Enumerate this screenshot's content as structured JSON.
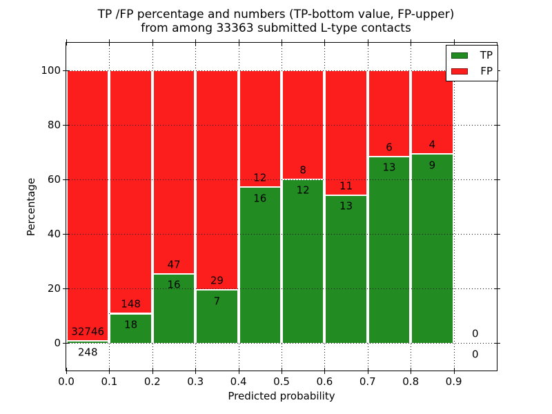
{
  "chart_data": {
    "type": "bar",
    "stacked": true,
    "title": "TP /FP percentage and numbers (TP-bottom value, FP-upper) from among 33363 submitted L-type contacts",
    "title_line1": "TP /FP percentage and numbers (TP-bottom value, FP-upper)",
    "title_line2": "from among 33363 submitted L-type contacts",
    "xlabel": "Predicted probability",
    "ylabel": "Percentage",
    "xlim": [
      0.0,
      1.0
    ],
    "ylim": [
      -10,
      110
    ],
    "grid": true,
    "x_ticks": [
      "0.0",
      "0.1",
      "0.2",
      "0.3",
      "0.4",
      "0.5",
      "0.6",
      "0.7",
      "0.8",
      "0.9"
    ],
    "y_ticks": [
      "0",
      "20",
      "40",
      "60",
      "80",
      "100"
    ],
    "legend": {
      "position": "upper right",
      "entries": [
        {
          "label": "TP",
          "color": "#228b22"
        },
        {
          "label": "FP",
          "color": "#fc1d1d"
        }
      ]
    },
    "bin_width": 0.1,
    "bins": [
      {
        "range": [
          0.0,
          0.1
        ],
        "tp": 248,
        "fp": 32746,
        "tp_percent": 0.75,
        "fp_percent": 99.25
      },
      {
        "range": [
          0.1,
          0.2
        ],
        "tp": 18,
        "fp": 148,
        "tp_percent": 10.84,
        "fp_percent": 89.16
      },
      {
        "range": [
          0.2,
          0.3
        ],
        "tp": 16,
        "fp": 47,
        "tp_percent": 25.4,
        "fp_percent": 74.6
      },
      {
        "range": [
          0.3,
          0.4
        ],
        "tp": 7,
        "fp": 29,
        "tp_percent": 19.44,
        "fp_percent": 80.56
      },
      {
        "range": [
          0.4,
          0.5
        ],
        "tp": 16,
        "fp": 12,
        "tp_percent": 57.14,
        "fp_percent": 42.86
      },
      {
        "range": [
          0.5,
          0.6
        ],
        "tp": 12,
        "fp": 8,
        "tp_percent": 60.0,
        "fp_percent": 40.0
      },
      {
        "range": [
          0.6,
          0.7
        ],
        "tp": 13,
        "fp": 11,
        "tp_percent": 54.17,
        "fp_percent": 45.83
      },
      {
        "range": [
          0.7,
          0.8
        ],
        "tp": 13,
        "fp": 6,
        "tp_percent": 68.42,
        "fp_percent": 31.58
      },
      {
        "range": [
          0.8,
          0.9
        ],
        "tp": 9,
        "fp": 4,
        "tp_percent": 69.23,
        "fp_percent": 30.77
      },
      {
        "range": [
          0.9,
          1.0
        ],
        "tp": 0,
        "fp": 0,
        "tp_percent": 0,
        "fp_percent": 0
      }
    ]
  },
  "colors": {
    "tp_green": "#228b22",
    "fp_red": "#fc1d1d",
    "grid": "#000000",
    "frame": "#000000",
    "background": "#ffffff"
  }
}
